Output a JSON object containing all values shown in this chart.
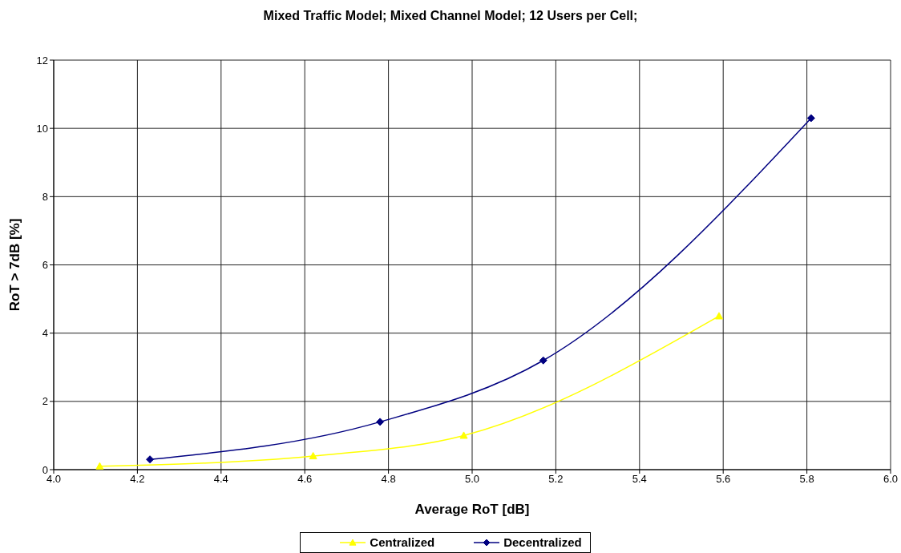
{
  "chart_data": {
    "type": "line",
    "title": "Mixed Traffic Model; Mixed Channel Model; 12 Users per Cell;",
    "xlabel": "Average RoT [dB]",
    "ylabel": "RoT > 7dB [%]",
    "series": [
      {
        "name": "Centralized",
        "color": "#ffff00",
        "marker": "triangle",
        "x": [
          4.11,
          4.62,
          4.98,
          5.59
        ],
        "values": [
          0.1,
          0.4,
          1.0,
          4.5
        ]
      },
      {
        "name": "Decentralized",
        "color": "#000080",
        "marker": "diamond",
        "x": [
          4.23,
          4.78,
          5.17,
          5.81
        ],
        "values": [
          0.3,
          1.4,
          3.2,
          10.3
        ]
      }
    ],
    "xlim": [
      4.0,
      6.0
    ],
    "xticks": [
      {
        "value": 4.0,
        "label": "4.0"
      },
      4.2,
      4.4,
      4.6,
      4.8,
      {
        "value": 5.0,
        "label": "5.0"
      },
      5.2,
      5.4,
      5.6,
      5.8,
      {
        "value": 6.0,
        "label": "6.0"
      }
    ],
    "ylim": [
      0,
      12
    ],
    "yticks": [
      0,
      2,
      4,
      6,
      8,
      10,
      12
    ],
    "grid": true,
    "legend": "bottom"
  }
}
